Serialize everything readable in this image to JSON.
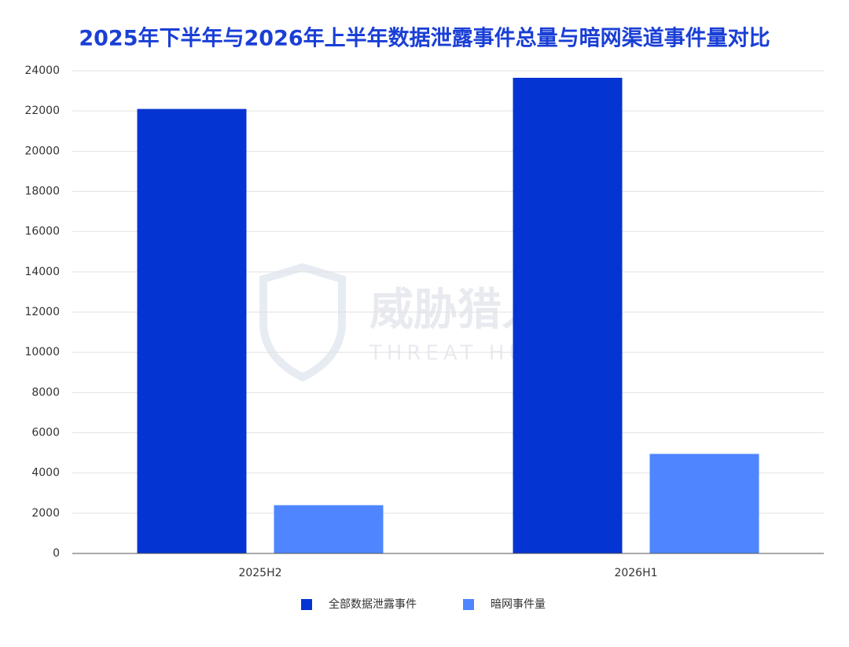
{
  "chart_data": {
    "type": "bar",
    "title": "2025年下半年与2026年上半年数据泄露事件总量与暗网渠道事件量对比",
    "categories": [
      "2025H2",
      "2026H1"
    ],
    "series": [
      {
        "name": "全部数据泄露事件",
        "color": "#0434d2",
        "values": [
          22100,
          23650
        ]
      },
      {
        "name": "暗网事件量",
        "color": "#4f86ff",
        "values": [
          2400,
          4950
        ]
      }
    ],
    "ylim": [
      0,
      24000
    ],
    "yticks": [
      0,
      2000,
      4000,
      6000,
      8000,
      10000,
      12000,
      14000,
      16000,
      18000,
      20000,
      22000,
      24000
    ],
    "grid": true,
    "legend": "bottom",
    "watermark": {
      "title": "威胁猎人",
      "subtitle": "THREAT HUNTER"
    }
  }
}
